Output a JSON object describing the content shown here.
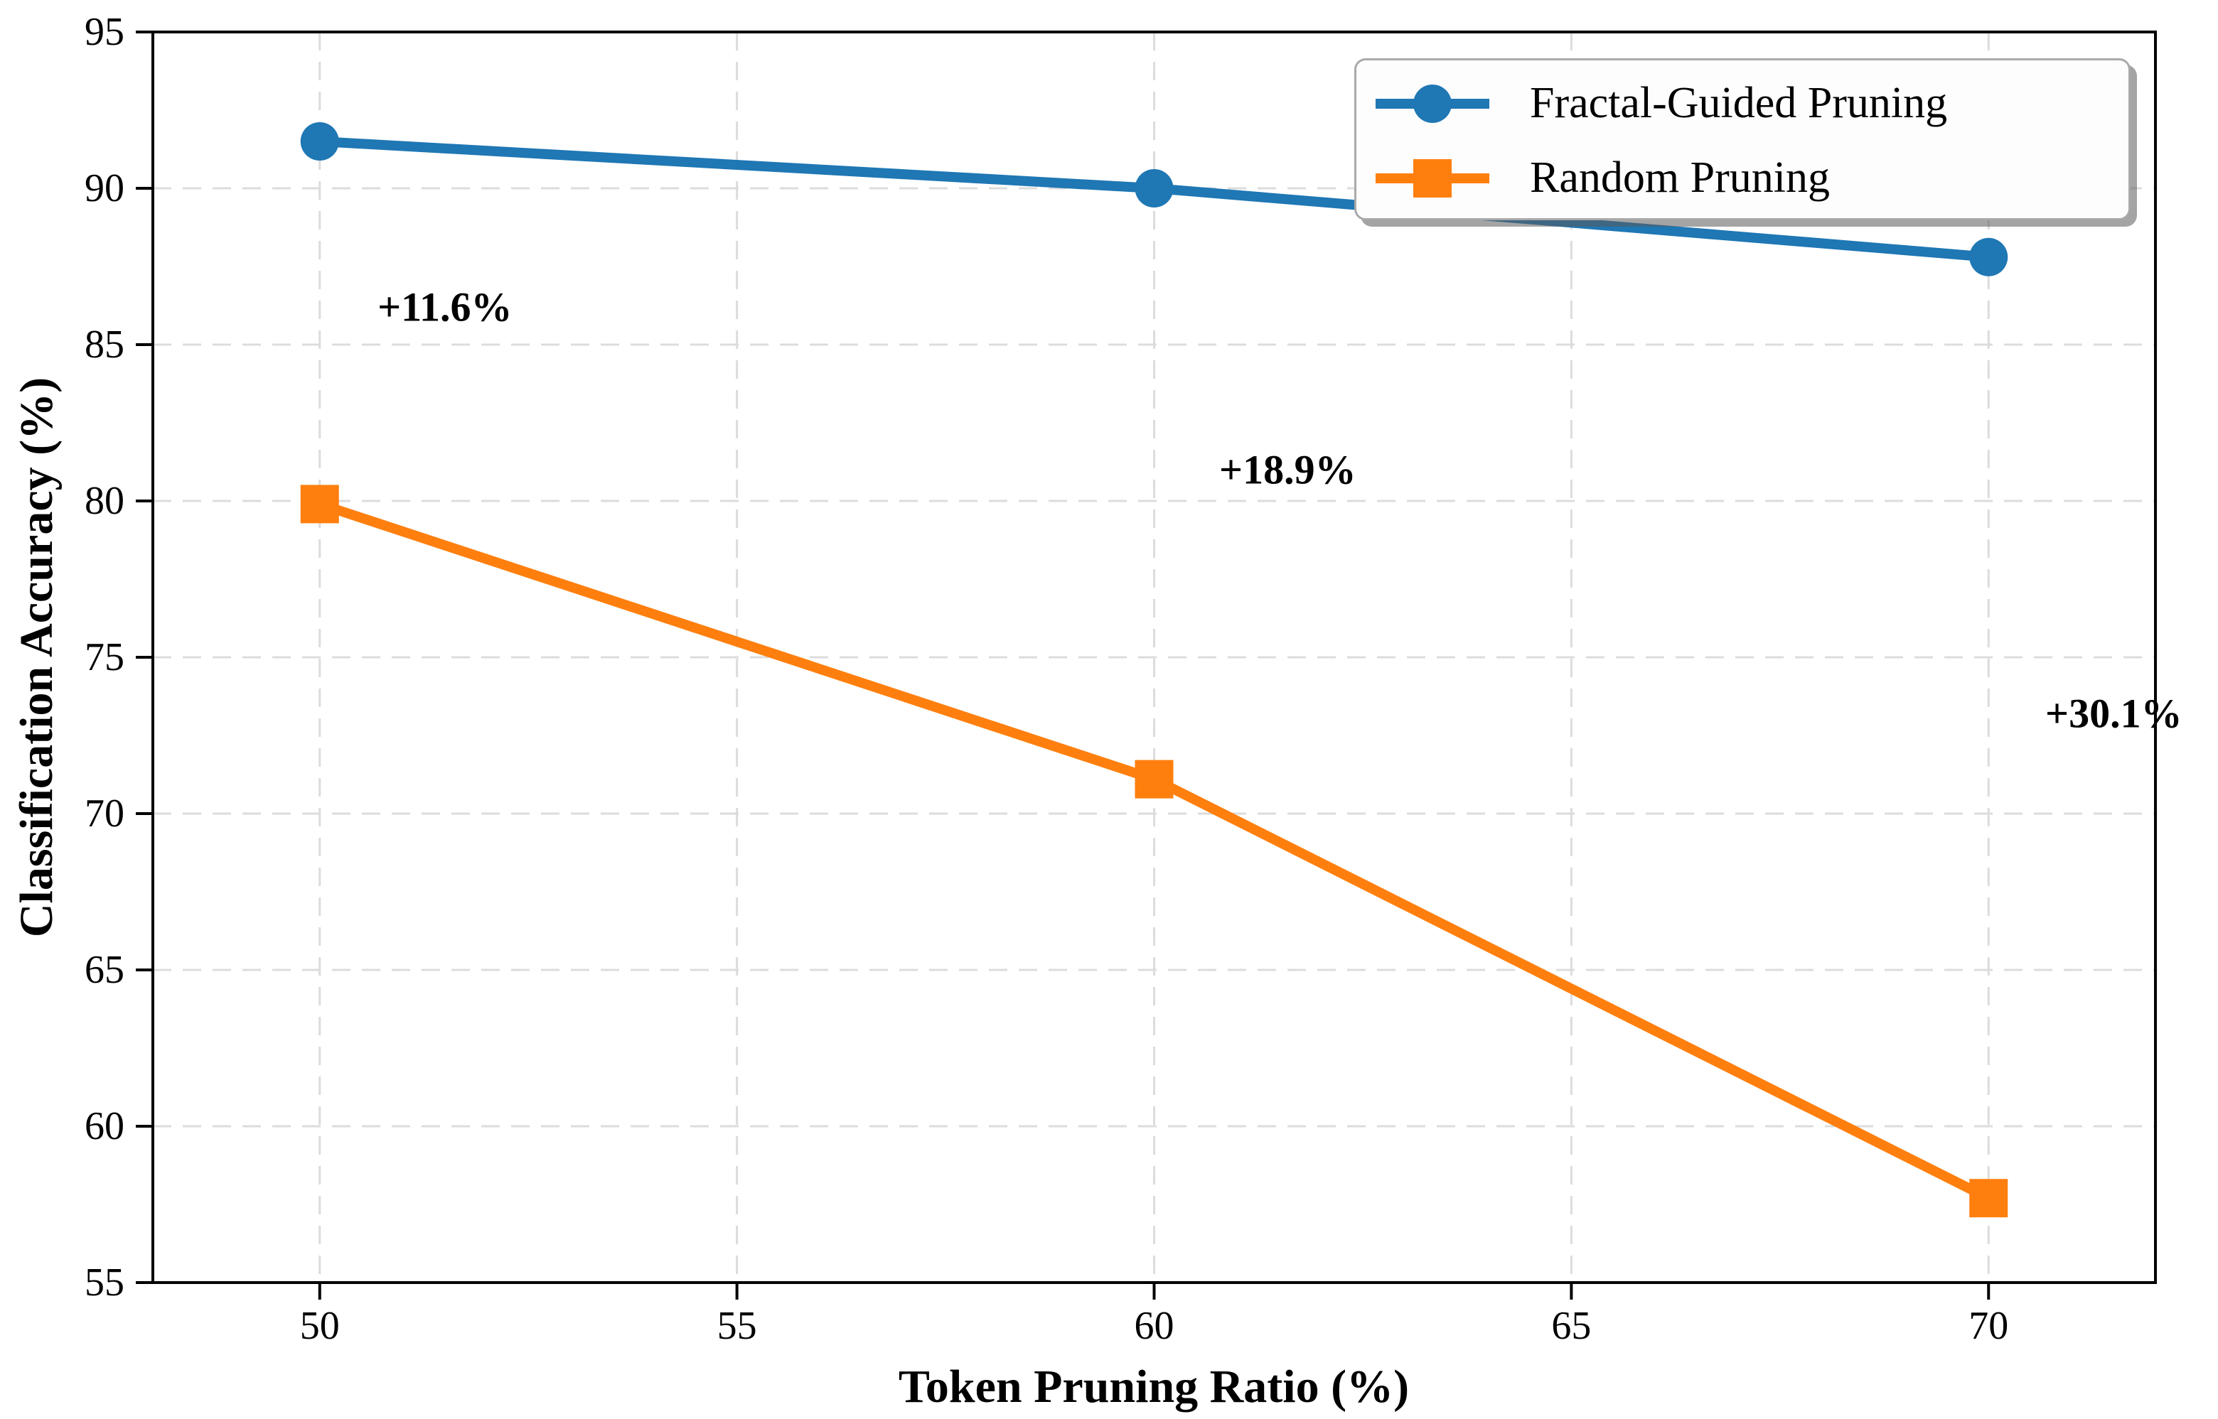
{
  "chart_data": {
    "type": "line",
    "title": "",
    "xlabel": "Token Pruning Ratio (%)",
    "ylabel": "Classification Accuracy (%)",
    "x": [
      50,
      60,
      70
    ],
    "series": [
      {
        "name": "Fractal-Guided Pruning",
        "values": [
          91.5,
          90.0,
          87.8
        ],
        "color": "#1f77b4",
        "marker": "circle"
      },
      {
        "name": "Random Pruning",
        "values": [
          79.9,
          71.1,
          57.7
        ],
        "color": "#ff7f0e",
        "marker": "square"
      }
    ],
    "annotations": [
      {
        "text": "+11.6%",
        "x": 51.5,
        "y": 86.2
      },
      {
        "text": "+18.9%",
        "x": 61.6,
        "y": 81.0
      },
      {
        "text": "+30.1%",
        "x": 71.5,
        "y": 73.2
      }
    ],
    "xlim": [
      48,
      72
    ],
    "ylim": [
      55,
      95
    ],
    "xticks": [
      50,
      55,
      60,
      65,
      70
    ],
    "yticks": [
      55,
      60,
      65,
      70,
      75,
      80,
      85,
      90,
      95
    ],
    "grid": true,
    "grid_style": "dashed",
    "legend_position": "upper right",
    "colors": {
      "grid": "#dcdcdc",
      "spine": "#000000",
      "tick_label": "#000000",
      "legend_background": "#fdfdfd",
      "legend_border": "#a9a9a9"
    }
  }
}
